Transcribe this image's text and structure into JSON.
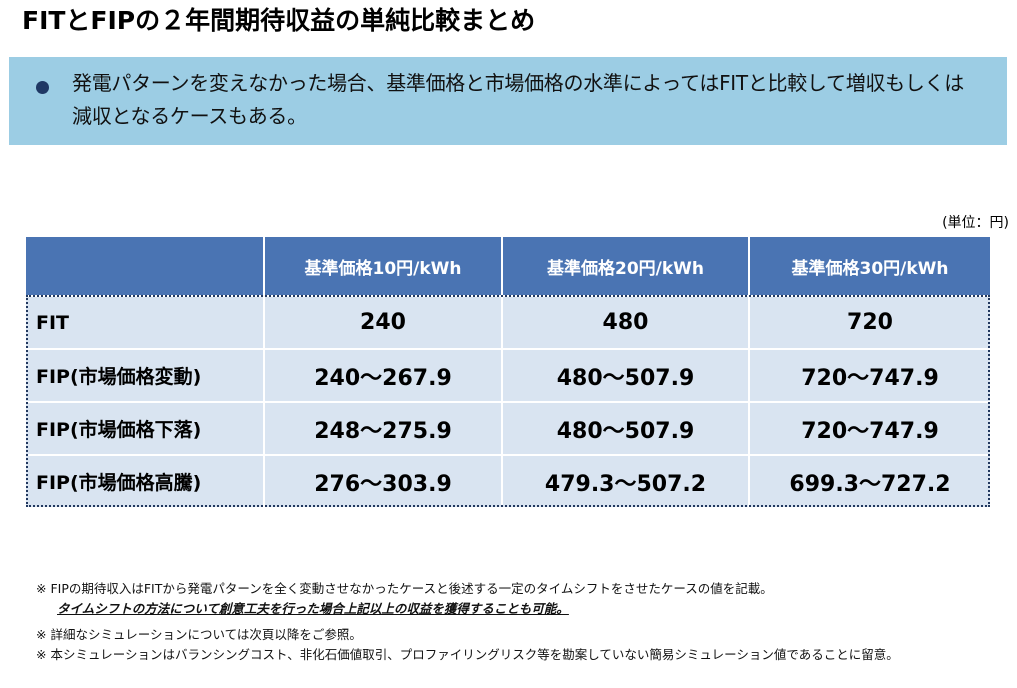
{
  "title": "FITとFIPの２年間期待収益の単純比較まとめ",
  "summary": "発電パターンを変えなかった場合、基準価格と市場価格の水準によってはFITと比較して増収もしくは減収となるケースもある。",
  "unit_label": "(単位：円)",
  "table": {
    "headers": [
      "",
      "基準価格10円/kWh",
      "基準価格20円/kWh",
      "基準価格30円/kWh"
    ],
    "rows": [
      {
        "label": "FIT",
        "values": [
          "240",
          "480",
          "720"
        ]
      },
      {
        "label": "FIP(市場価格変動)",
        "values": [
          "240～267.9",
          "480～507.9",
          "720～747.9"
        ]
      },
      {
        "label": "FIP(市場価格下落)",
        "values": [
          "248～275.9",
          "480～507.9",
          "720～747.9"
        ]
      },
      {
        "label": "FIP(市場価格高騰)",
        "values": [
          "276～303.9",
          "479.3～507.2",
          "699.3～727.2"
        ]
      }
    ]
  },
  "notes": [
    "※ FIPの期待収入はFITから発電パターンを全く変動させなかったケースと後述する一定のタイムシフトをさせたケースの値を記載。",
    "タイムシフトの方法について創意工夫を行った場合上記以上の収益を獲得することも可能。",
    "※ 詳細なシミュレーションについては次頁以降をご参照。",
    "※ 本シミュレーションはバランシングコスト、非化石価値取引、プロファイリングリスク等を勘案していない簡易シミュレーション値であることに留意。"
  ],
  "colors": {
    "summary_bg": "#9ccde4",
    "header_bg": "#4a74b3",
    "row_bg": "#d9e4f1",
    "bullet": "#1f3864"
  },
  "icons": {
    "bullet": "filled-circle"
  }
}
